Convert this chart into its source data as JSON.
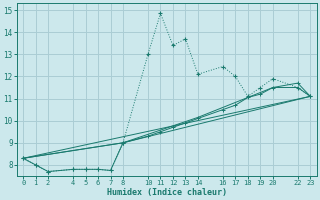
{
  "xlabel": "Humidex (Indice chaleur)",
  "bg_color": "#cce8ec",
  "line_color": "#1a7a6e",
  "grid_color": "#aacdd4",
  "xlim": [
    -0.5,
    23.5
  ],
  "ylim": [
    7.5,
    15.3
  ],
  "yticks": [
    8,
    9,
    10,
    11,
    12,
    13,
    14,
    15
  ],
  "xticks": [
    0,
    1,
    2,
    4,
    5,
    6,
    7,
    8,
    10,
    11,
    12,
    13,
    14,
    16,
    17,
    18,
    19,
    20,
    22,
    23
  ],
  "series1_x": [
    0,
    1,
    2,
    4,
    5,
    6,
    7,
    8,
    10,
    11,
    12,
    13,
    14,
    16,
    17,
    18,
    19,
    20,
    22,
    23
  ],
  "series1_y": [
    8.3,
    8.0,
    7.7,
    7.8,
    7.8,
    7.8,
    7.75,
    9.0,
    13.0,
    14.85,
    13.4,
    13.7,
    12.1,
    12.45,
    12.0,
    11.1,
    11.5,
    11.9,
    11.5,
    11.1
  ],
  "series2_x": [
    0,
    1,
    2,
    4,
    5,
    6,
    7,
    8,
    10,
    11,
    12,
    13,
    14,
    16,
    17,
    18,
    19,
    20,
    22,
    23
  ],
  "series2_y": [
    8.3,
    8.0,
    7.7,
    7.8,
    7.8,
    7.8,
    7.75,
    9.0,
    9.3,
    9.5,
    9.7,
    9.9,
    10.1,
    10.5,
    10.7,
    11.05,
    11.2,
    11.5,
    11.7,
    11.1
  ],
  "series3_x": [
    0,
    23
  ],
  "series3_y": [
    8.3,
    11.1
  ],
  "series4_x": [
    0,
    8,
    23
  ],
  "series4_y": [
    8.3,
    9.0,
    11.1
  ],
  "series5_x": [
    0,
    8,
    14,
    20,
    22,
    23
  ],
  "series5_y": [
    8.3,
    9.0,
    10.15,
    11.5,
    11.5,
    11.1
  ]
}
